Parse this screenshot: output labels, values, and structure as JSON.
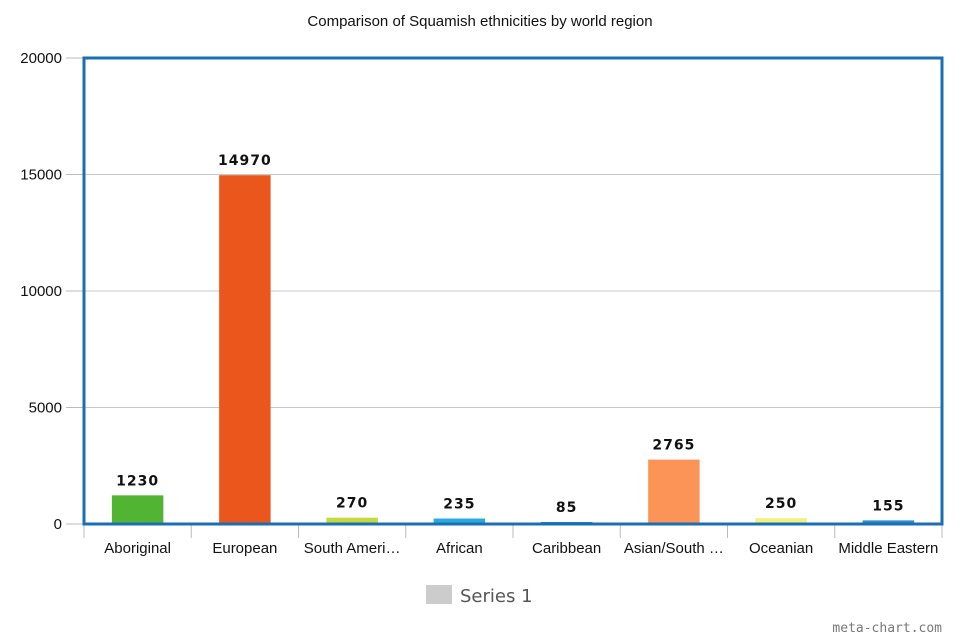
{
  "chart_data": {
    "type": "bar",
    "title": "Comparison of Squamish ethnicities by world region",
    "categories": [
      "Aboriginal",
      "European",
      "South Ameri…",
      "African",
      "Caribbean",
      "Asian/South …",
      "Oceanian",
      "Middle Eastern"
    ],
    "series": [
      {
        "name": "Series 1",
        "values": [
          1230,
          14970,
          270,
          235,
          85,
          2765,
          250,
          155
        ],
        "data_labels": [
          "1230",
          "14970",
          "270",
          "235",
          "85",
          "2765",
          "250",
          "155"
        ]
      }
    ],
    "bar_colors": [
      "#52b433",
      "#ea561c",
      "#c4d93e",
      "#29a9e0",
      "#1a7fc0",
      "#fd9457",
      "#f3f182",
      "#2a8fc6"
    ],
    "ylim": [
      0,
      20000
    ],
    "yticks": [
      "0",
      "5000",
      "10000",
      "15000",
      "20000"
    ],
    "xlabel": "",
    "ylabel": "",
    "grid": true,
    "legend_position": "bottom",
    "legend_color": "#cccccc",
    "frame_color": "#1a6fb3"
  },
  "watermark": "meta-chart.com"
}
